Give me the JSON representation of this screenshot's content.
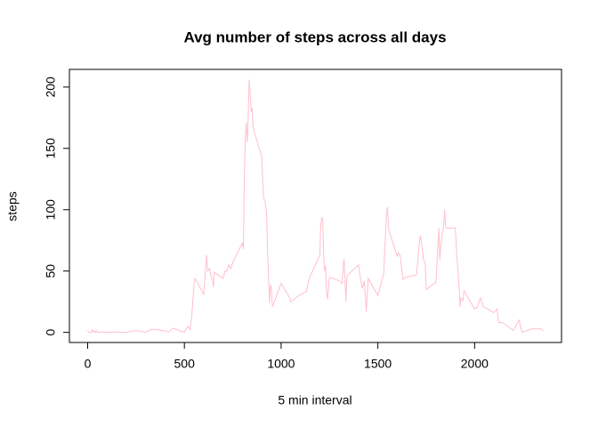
{
  "chart_data": {
    "type": "line",
    "title": "Avg number of steps across all days",
    "x_label": "5 min interval",
    "y_label": "steps",
    "x": [
      0,
      5,
      10,
      15,
      20,
      25,
      30,
      35,
      40,
      45,
      50,
      55,
      100,
      120,
      150,
      200,
      250,
      300,
      330,
      400,
      420,
      440,
      450,
      500,
      510,
      520,
      530,
      540,
      550,
      555,
      600,
      610,
      615,
      620,
      630,
      640,
      645,
      650,
      655,
      700,
      710,
      720,
      730,
      740,
      750,
      800,
      805,
      810,
      815,
      820,
      825,
      830,
      835,
      840,
      845,
      850,
      855,
      900,
      905,
      910,
      915,
      920,
      925,
      930,
      935,
      940,
      945,
      950,
      955,
      1000,
      1030,
      1045,
      1050,
      1100,
      1130,
      1145,
      1200,
      1205,
      1210,
      1215,
      1220,
      1225,
      1230,
      1235,
      1240,
      1245,
      1250,
      1300,
      1315,
      1325,
      1330,
      1335,
      1340,
      1400,
      1410,
      1420,
      1430,
      1440,
      1450,
      1500,
      1510,
      1530,
      1545,
      1550,
      1555,
      1600,
      1605,
      1615,
      1620,
      1630,
      1645,
      1700,
      1705,
      1715,
      1720,
      1730,
      1735,
      1745,
      1750,
      1800,
      1815,
      1820,
      1830,
      1840,
      1845,
      1850,
      1855,
      1900,
      1910,
      1920,
      1925,
      1930,
      1940,
      1945,
      2000,
      2015,
      2030,
      2045,
      2100,
      2115,
      2125,
      2145,
      2200,
      2230,
      2245,
      2300,
      2330,
      2340,
      2355
    ],
    "series": [
      {
        "name": "steps",
        "color": "#ffc0cb",
        "values": [
          1.7,
          0.3,
          0.1,
          0.2,
          0.1,
          2.1,
          0.5,
          0.9,
          0,
          1.5,
          0.3,
          0.1,
          0.3,
          0,
          0.3,
          0,
          1.5,
          0,
          2.6,
          1.2,
          0.3,
          3.5,
          2.9,
          0,
          3,
          5,
          2,
          17,
          39,
          44,
          31,
          53,
          63,
          50,
          52,
          44,
          44,
          37,
          49,
          44,
          50,
          50,
          55,
          52,
          57,
          73,
          68,
          129,
          158,
          171,
          155,
          177,
          206,
          196,
          180,
          183,
          167,
          143,
          124,
          109,
          108,
          104,
          96,
          66,
          45,
          24,
          39,
          35,
          21,
          40,
          32,
          28,
          25,
          31,
          33,
          44,
          63,
          87,
          94,
          92,
          63,
          50,
          54,
          32,
          27,
          37,
          45,
          42,
          40,
          60,
          44,
          25,
          46,
          55,
          44,
          36,
          42,
          17,
          44,
          30,
          36,
          48,
          98,
          102,
          84,
          62,
          65,
          63,
          56,
          43,
          45,
          47,
          56,
          74,
          79,
          68,
          60,
          56,
          35,
          41,
          85,
          59,
          78,
          86,
          100,
          87,
          85,
          85,
          59,
          37,
          21,
          28,
          26,
          34,
          19,
          21,
          28,
          21,
          16,
          19,
          8,
          8,
          1.6,
          10,
          0.1,
          3,
          2.6,
          3.3,
          1.1
        ]
      }
    ],
    "xlim": [
      -94.2,
      2449.2
    ],
    "xticks": [
      0,
      500,
      1000,
      1500,
      2000
    ],
    "ylim": [
      -8.25,
      214.4
    ],
    "yticks": [
      0,
      50,
      100,
      150,
      200
    ]
  }
}
